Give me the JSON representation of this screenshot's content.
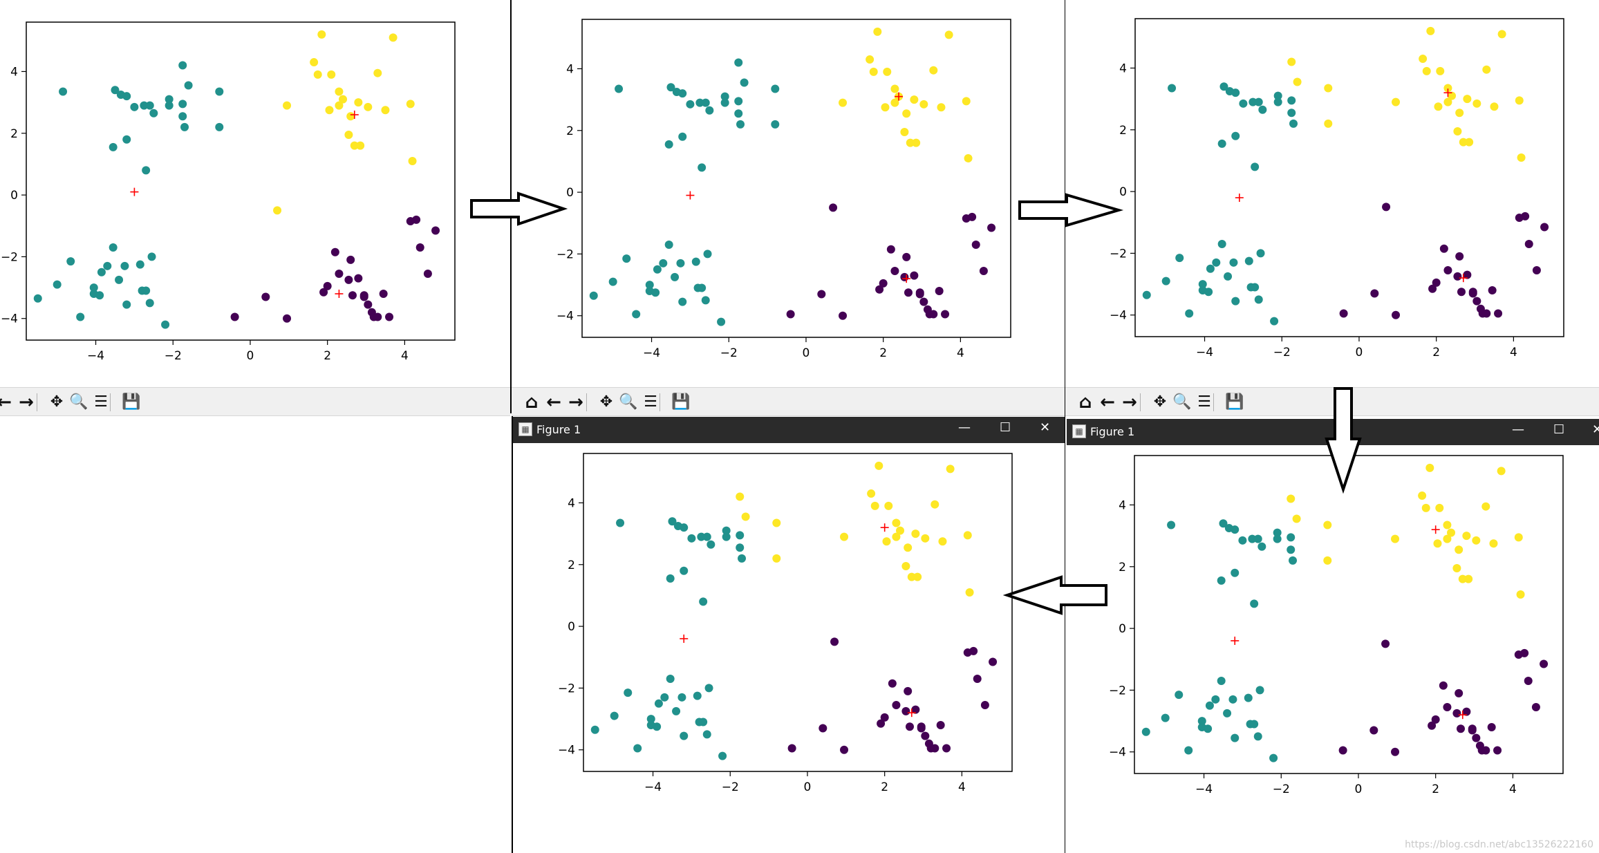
{
  "figure_window": {
    "title": "Figure 1",
    "minimize_icon": "minimize-icon",
    "maximize_icon": "maximize-icon",
    "close_icon": "close-icon",
    "minimize_glyph": "—",
    "maximize_glyph": "☐",
    "close_glyph": "✕"
  },
  "toolbar": {
    "buttons": [
      {
        "name": "home-button",
        "icon": "home-icon",
        "glyph": "⌂"
      },
      {
        "name": "back-button",
        "icon": "arrow-left-icon",
        "glyph": "←"
      },
      {
        "name": "forward-button",
        "icon": "arrow-right-icon",
        "glyph": "→"
      },
      {
        "name": "pan-button",
        "icon": "move-icon",
        "glyph": "✥"
      },
      {
        "name": "zoom-button",
        "icon": "magnifier-icon",
        "glyph": "🔍"
      },
      {
        "name": "configure-subplots-button",
        "icon": "sliders-icon",
        "glyph": "☰"
      },
      {
        "name": "save-button",
        "icon": "floppy-disk-icon",
        "glyph": "💾"
      }
    ]
  },
  "flow_arrows": [
    "right",
    "right",
    "down",
    "left"
  ],
  "watermark": "https://blog.csdn.net/abc13526222160",
  "colors": {
    "cluster_purple": "#440154",
    "cluster_teal": "#21918c",
    "cluster_yellow": "#fde725",
    "centroid": "#ff0000",
    "titlebar": "#2b2b2b",
    "toolbar": "#f0f0f0"
  },
  "chart_data": [
    {
      "type": "scatter",
      "panel": "iteration 1",
      "xlim": [
        -5.8,
        5.3
      ],
      "ylim": [
        -4.7,
        5.6
      ],
      "xticks": [
        -4,
        -2,
        0,
        2,
        4
      ],
      "yticks": [
        -4,
        -2,
        0,
        2,
        4
      ],
      "xtick_labels": [
        "−4",
        "−2",
        "0",
        "2",
        "4"
      ],
      "ytick_labels": [
        "−4",
        "−2",
        "0",
        "2",
        "4"
      ],
      "centroids": [
        [
          -3.0,
          0.1
        ],
        [
          2.7,
          2.6
        ],
        [
          2.3,
          -3.2
        ]
      ]
    },
    {
      "type": "scatter",
      "panel": "iteration 2",
      "xlim": [
        -5.8,
        5.3
      ],
      "ylim": [
        -4.7,
        5.6
      ],
      "xticks": [
        -4,
        -2,
        0,
        2,
        4
      ],
      "yticks": [
        -4,
        -2,
        0,
        2,
        4
      ],
      "xtick_labels": [
        "−4",
        "−2",
        "0",
        "2",
        "4"
      ],
      "ytick_labels": [
        "−4",
        "−2",
        "0",
        "2",
        "4"
      ],
      "centroids": [
        [
          -3.0,
          -0.1
        ],
        [
          2.4,
          3.1
        ],
        [
          2.6,
          -2.8
        ]
      ]
    },
    {
      "type": "scatter",
      "panel": "iteration 3",
      "xlim": [
        -5.8,
        5.3
      ],
      "ylim": [
        -4.7,
        5.6
      ],
      "xticks": [
        -4,
        -2,
        0,
        2,
        4
      ],
      "yticks": [
        -4,
        -2,
        0,
        2,
        4
      ],
      "xtick_labels": [
        "−4",
        "−2",
        "0",
        "2",
        "4"
      ],
      "ytick_labels": [
        "−4",
        "−2",
        "0",
        "2",
        "4"
      ],
      "centroids": [
        [
          -3.1,
          -0.2
        ],
        [
          2.3,
          3.2
        ],
        [
          2.7,
          -2.8
        ]
      ]
    },
    {
      "type": "scatter",
      "panel": "iteration 4",
      "xlim": [
        -5.8,
        5.3
      ],
      "ylim": [
        -4.7,
        5.6
      ],
      "xticks": [
        -4,
        -2,
        0,
        2,
        4
      ],
      "yticks": [
        -4,
        -2,
        0,
        2,
        4
      ],
      "xtick_labels": [
        "−4",
        "−2",
        "0",
        "2",
        "4"
      ],
      "ytick_labels": [
        "−4",
        "−2",
        "0",
        "2",
        "4"
      ],
      "centroids": [
        [
          -3.2,
          -0.4
        ],
        [
          2.0,
          3.2
        ],
        [
          2.7,
          -2.8
        ]
      ]
    },
    {
      "type": "scatter",
      "panel": "iteration 5",
      "xlim": [
        -5.8,
        5.3
      ],
      "ylim": [
        -4.7,
        5.6
      ],
      "xticks": [
        -4,
        -2,
        0,
        2,
        4
      ],
      "yticks": [
        -4,
        -2,
        0,
        2,
        4
      ],
      "xtick_labels": [
        "−4",
        "−2",
        "0",
        "2",
        "4"
      ],
      "ytick_labels": [
        "−4",
        "−2",
        "0",
        "2",
        "4"
      ],
      "centroids": [
        [
          -3.2,
          -0.4
        ],
        [
          2.0,
          3.2
        ],
        [
          2.7,
          -2.8
        ]
      ]
    }
  ],
  "points": [
    [
      -4.85,
      3.35,
      "t"
    ],
    [
      -3.5,
      3.4,
      "t"
    ],
    [
      -3.35,
      3.25,
      "t"
    ],
    [
      -3.2,
      3.2,
      "t"
    ],
    [
      -3.0,
      2.85,
      "t"
    ],
    [
      -2.75,
      2.9,
      "t"
    ],
    [
      -2.6,
      2.9,
      "t"
    ],
    [
      -2.5,
      2.65,
      "t"
    ],
    [
      -2.1,
      3.1,
      "t"
    ],
    [
      -2.1,
      2.9,
      "t"
    ],
    [
      -1.75,
      4.2,
      "t"
    ],
    [
      -1.75,
      2.95,
      "t"
    ],
    [
      -1.6,
      3.55,
      "t"
    ],
    [
      -1.75,
      2.55,
      "t"
    ],
    [
      -1.7,
      2.2,
      "t"
    ],
    [
      -0.8,
      3.35,
      "t"
    ],
    [
      -0.8,
      2.2,
      "t"
    ],
    [
      -3.2,
      1.8,
      "t"
    ],
    [
      -3.55,
      1.55,
      "t"
    ],
    [
      -2.7,
      0.8,
      "t"
    ],
    [
      -5.5,
      -3.35,
      "t"
    ],
    [
      -5.0,
      -2.9,
      "t"
    ],
    [
      -4.65,
      -2.15,
      "t"
    ],
    [
      -4.4,
      -3.95,
      "t"
    ],
    [
      -4.05,
      -3.0,
      "t"
    ],
    [
      -4.05,
      -3.2,
      "t"
    ],
    [
      -3.9,
      -3.25,
      "t"
    ],
    [
      -3.85,
      -2.5,
      "t"
    ],
    [
      -3.7,
      -2.3,
      "t"
    ],
    [
      -3.55,
      -1.7,
      "t"
    ],
    [
      -3.4,
      -2.75,
      "t"
    ],
    [
      -3.25,
      -2.3,
      "t"
    ],
    [
      -3.2,
      -3.55,
      "t"
    ],
    [
      -2.85,
      -2.25,
      "t"
    ],
    [
      -2.8,
      -3.1,
      "t"
    ],
    [
      -2.7,
      -3.1,
      "t"
    ],
    [
      -2.6,
      -3.5,
      "t"
    ],
    [
      -2.55,
      -2.0,
      "t"
    ],
    [
      -2.2,
      -4.2,
      "t"
    ],
    [
      1.65,
      4.3,
      "y"
    ],
    [
      1.85,
      5.2,
      "y"
    ],
    [
      1.75,
      3.9,
      "y"
    ],
    [
      2.1,
      3.9,
      "y"
    ],
    [
      2.3,
      3.35,
      "y"
    ],
    [
      2.4,
      3.1,
      "y"
    ],
    [
      2.3,
      2.9,
      "y"
    ],
    [
      2.05,
      2.75,
      "y"
    ],
    [
      2.6,
      2.55,
      "y"
    ],
    [
      2.55,
      1.95,
      "y"
    ],
    [
      2.7,
      1.6,
      "y"
    ],
    [
      2.85,
      1.6,
      "y"
    ],
    [
      2.8,
      3.0,
      "y"
    ],
    [
      3.05,
      2.85,
      "y"
    ],
    [
      3.3,
      3.95,
      "y"
    ],
    [
      3.7,
      5.1,
      "y"
    ],
    [
      4.15,
      2.95,
      "y"
    ],
    [
      3.5,
      2.75,
      "y"
    ],
    [
      4.2,
      1.1,
      "y"
    ],
    [
      0.95,
      2.9,
      "y"
    ],
    [
      -0.4,
      -3.95,
      "p"
    ],
    [
      0.4,
      -3.3,
      "p"
    ],
    [
      0.95,
      -4.0,
      "p"
    ],
    [
      1.9,
      -3.15,
      "p"
    ],
    [
      2.0,
      -2.95,
      "p"
    ],
    [
      2.2,
      -1.85,
      "p"
    ],
    [
      2.3,
      -2.55,
      "p"
    ],
    [
      2.6,
      -2.1,
      "p"
    ],
    [
      2.55,
      -2.75,
      "p"
    ],
    [
      2.65,
      -3.25,
      "p"
    ],
    [
      2.8,
      -2.7,
      "p"
    ],
    [
      2.95,
      -3.25,
      "p"
    ],
    [
      2.95,
      -3.3,
      "p"
    ],
    [
      3.05,
      -3.55,
      "p"
    ],
    [
      3.15,
      -3.8,
      "p"
    ],
    [
      3.2,
      -3.95,
      "p"
    ],
    [
      3.3,
      -3.95,
      "p"
    ],
    [
      3.45,
      -3.2,
      "p"
    ],
    [
      3.6,
      -3.95,
      "p"
    ],
    [
      4.3,
      -0.8,
      "p"
    ],
    [
      4.4,
      -1.7,
      "p"
    ],
    [
      4.6,
      -2.55,
      "p"
    ],
    [
      4.8,
      -1.15,
      "p"
    ],
    [
      4.15,
      -0.85,
      "p"
    ]
  ],
  "panel_variants": [
    {
      "y": [],
      "p": [],
      "extra_yellow": [
        [
          0.7,
          -0.5
        ]
      ],
      "purple_override": []
    },
    {
      "y": [],
      "p": [],
      "extra_purple": [
        [
          0.7,
          -0.5
        ]
      ]
    },
    {
      "y": [],
      "p": [],
      "extra_purple": [
        [
          0.7,
          -0.5
        ]
      ],
      "move_to_yellow": [
        [
          -1.75,
          4.2
        ],
        [
          -1.6,
          3.55
        ],
        [
          -0.8,
          3.35
        ],
        [
          -0.8,
          2.2
        ]
      ]
    },
    {
      "y": [],
      "p": [],
      "extra_purple": [
        [
          0.7,
          -0.5
        ]
      ],
      "move_to_yellow": [
        [
          -1.75,
          4.2
        ],
        [
          -1.6,
          3.55
        ],
        [
          -0.8,
          3.35
        ],
        [
          -0.8,
          2.2
        ]
      ]
    },
    {
      "y": [],
      "p": [],
      "extra_purple": [
        [
          0.7,
          -0.5
        ]
      ],
      "move_to_yellow": [
        [
          -1.75,
          4.2
        ],
        [
          -1.6,
          3.55
        ],
        [
          -0.8,
          3.35
        ],
        [
          -0.8,
          2.2
        ]
      ]
    }
  ]
}
